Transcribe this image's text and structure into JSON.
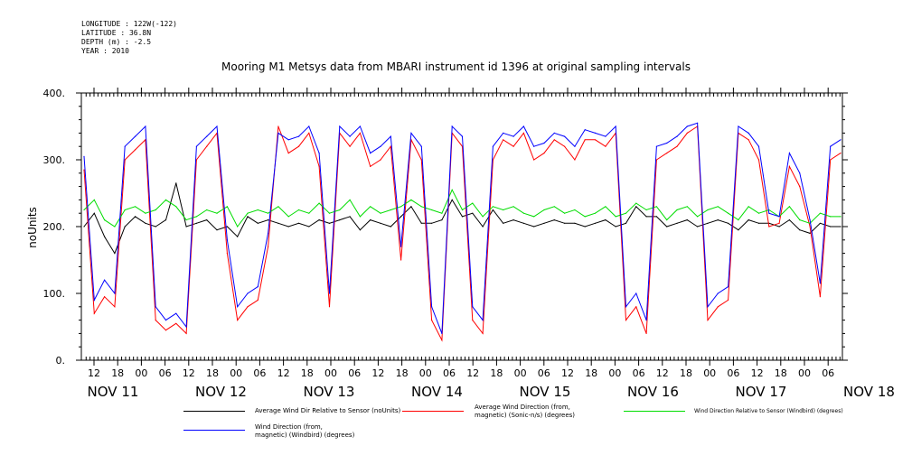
{
  "header": {
    "longitude": "LONGITUDE : 122W(-122)",
    "latitude": "LATITUDE : 36.8N",
    "depth": "DEPTH (m) : -2.5",
    "year": "YEAR : 2010"
  },
  "chart_data": {
    "type": "line",
    "title": "Mooring M1 Metsys data from MBARI instrument id 1396 at original sampling intervals",
    "ylabel": "noUnits",
    "xlabel": "",
    "ylim": [
      0,
      400
    ],
    "y_ticks": [
      "0.",
      "100.",
      "200.",
      "300.",
      "400."
    ],
    "x_hour_ticks": [
      "12",
      "18",
      "00",
      "06",
      "12",
      "18",
      "00",
      "06",
      "12",
      "18",
      "00",
      "06",
      "12",
      "18",
      "00",
      "06",
      "12",
      "18",
      "00",
      "06",
      "12",
      "18",
      "00",
      "06",
      "12",
      "18",
      "00",
      "06",
      "12",
      "18",
      "00",
      "06"
    ],
    "x_day_labels": [
      "NOV 11",
      "NOV 12",
      "NOV 13",
      "NOV 14",
      "NOV 15",
      "NOV 16",
      "NOV 17",
      "NOV 18"
    ],
    "series": [
      {
        "name": "Average Wind Dir Relative to Sensor (noUnits)",
        "color": "#000000",
        "values": [
          200,
          220,
          185,
          160,
          200,
          215,
          205,
          200,
          210,
          265,
          200,
          205,
          210,
          195,
          200,
          185,
          215,
          205,
          210,
          205,
          200,
          205,
          200,
          210,
          205,
          210,
          215,
          195,
          210,
          205,
          200,
          215,
          230,
          205,
          205,
          210,
          240,
          215,
          220,
          200,
          225,
          205,
          210,
          205,
          200,
          205,
          210,
          205,
          205,
          200,
          205,
          210,
          200,
          205,
          230,
          215,
          215,
          200,
          205,
          210,
          200,
          205,
          210,
          205,
          195,
          210,
          205,
          205,
          200,
          210,
          195,
          190,
          205,
          200,
          200
        ]
      },
      {
        "name": "Average Wind Direction (from, magnetic) (Sonic-n/s) (degrees)",
        "color": "#ff0000",
        "values": [
          285,
          70,
          95,
          80,
          300,
          315,
          330,
          60,
          45,
          55,
          40,
          300,
          320,
          340,
          160,
          60,
          80,
          90,
          170,
          350,
          310,
          320,
          340,
          290,
          80,
          340,
          320,
          340,
          290,
          300,
          320,
          150,
          330,
          300,
          60,
          30,
          340,
          320,
          60,
          40,
          300,
          330,
          320,
          340,
          300,
          310,
          330,
          320,
          300,
          330,
          330,
          320,
          340,
          60,
          80,
          40,
          300,
          310,
          320,
          340,
          350,
          60,
          80,
          90,
          340,
          330,
          300,
          200,
          205,
          290,
          260,
          200,
          95,
          300,
          310
        ]
      },
      {
        "name": "Wind Direction Relative to Sensor (Windbird) (degrees)",
        "color": "#00dd00",
        "values": [
          225,
          240,
          210,
          200,
          225,
          230,
          220,
          225,
          240,
          230,
          210,
          215,
          225,
          220,
          230,
          200,
          220,
          225,
          220,
          230,
          215,
          225,
          220,
          235,
          220,
          225,
          240,
          215,
          230,
          220,
          225,
          230,
          240,
          230,
          225,
          220,
          255,
          225,
          235,
          215,
          230,
          225,
          230,
          220,
          215,
          225,
          230,
          220,
          225,
          215,
          220,
          230,
          215,
          220,
          235,
          225,
          230,
          210,
          225,
          230,
          215,
          225,
          230,
          220,
          210,
          230,
          220,
          225,
          215,
          230,
          210,
          205,
          220,
          215,
          215
        ]
      },
      {
        "name": "Wind Direction (from, magnetic) (Windbird) (degrees)",
        "color": "#0000ff",
        "values": [
          305,
          90,
          120,
          100,
          320,
          335,
          350,
          80,
          60,
          70,
          50,
          320,
          335,
          350,
          180,
          80,
          100,
          110,
          190,
          340,
          330,
          335,
          350,
          310,
          100,
          350,
          335,
          350,
          310,
          320,
          335,
          170,
          340,
          320,
          80,
          40,
          350,
          335,
          80,
          60,
          320,
          340,
          335,
          350,
          320,
          325,
          340,
          335,
          320,
          345,
          340,
          335,
          350,
          80,
          100,
          60,
          320,
          325,
          335,
          350,
          355,
          80,
          100,
          110,
          350,
          340,
          320,
          220,
          215,
          310,
          280,
          210,
          115,
          320,
          330
        ]
      }
    ],
    "legend": [
      {
        "label": "Average Wind Dir Relative to Sensor (noUnits)",
        "color": "#000000"
      },
      {
        "label": "Average Wind Direction (from,\nmagnetic) (Sonic-n/s) (degrees)",
        "color": "#ff0000"
      },
      {
        "label": "Wind Direction Relative to Sensor (Windbird) (degrees)",
        "color": "#00dd00"
      },
      {
        "label": "Wind Direction (from,\nmagnetic) (Windbird) (degrees)",
        "color": "#0000ff"
      }
    ]
  }
}
